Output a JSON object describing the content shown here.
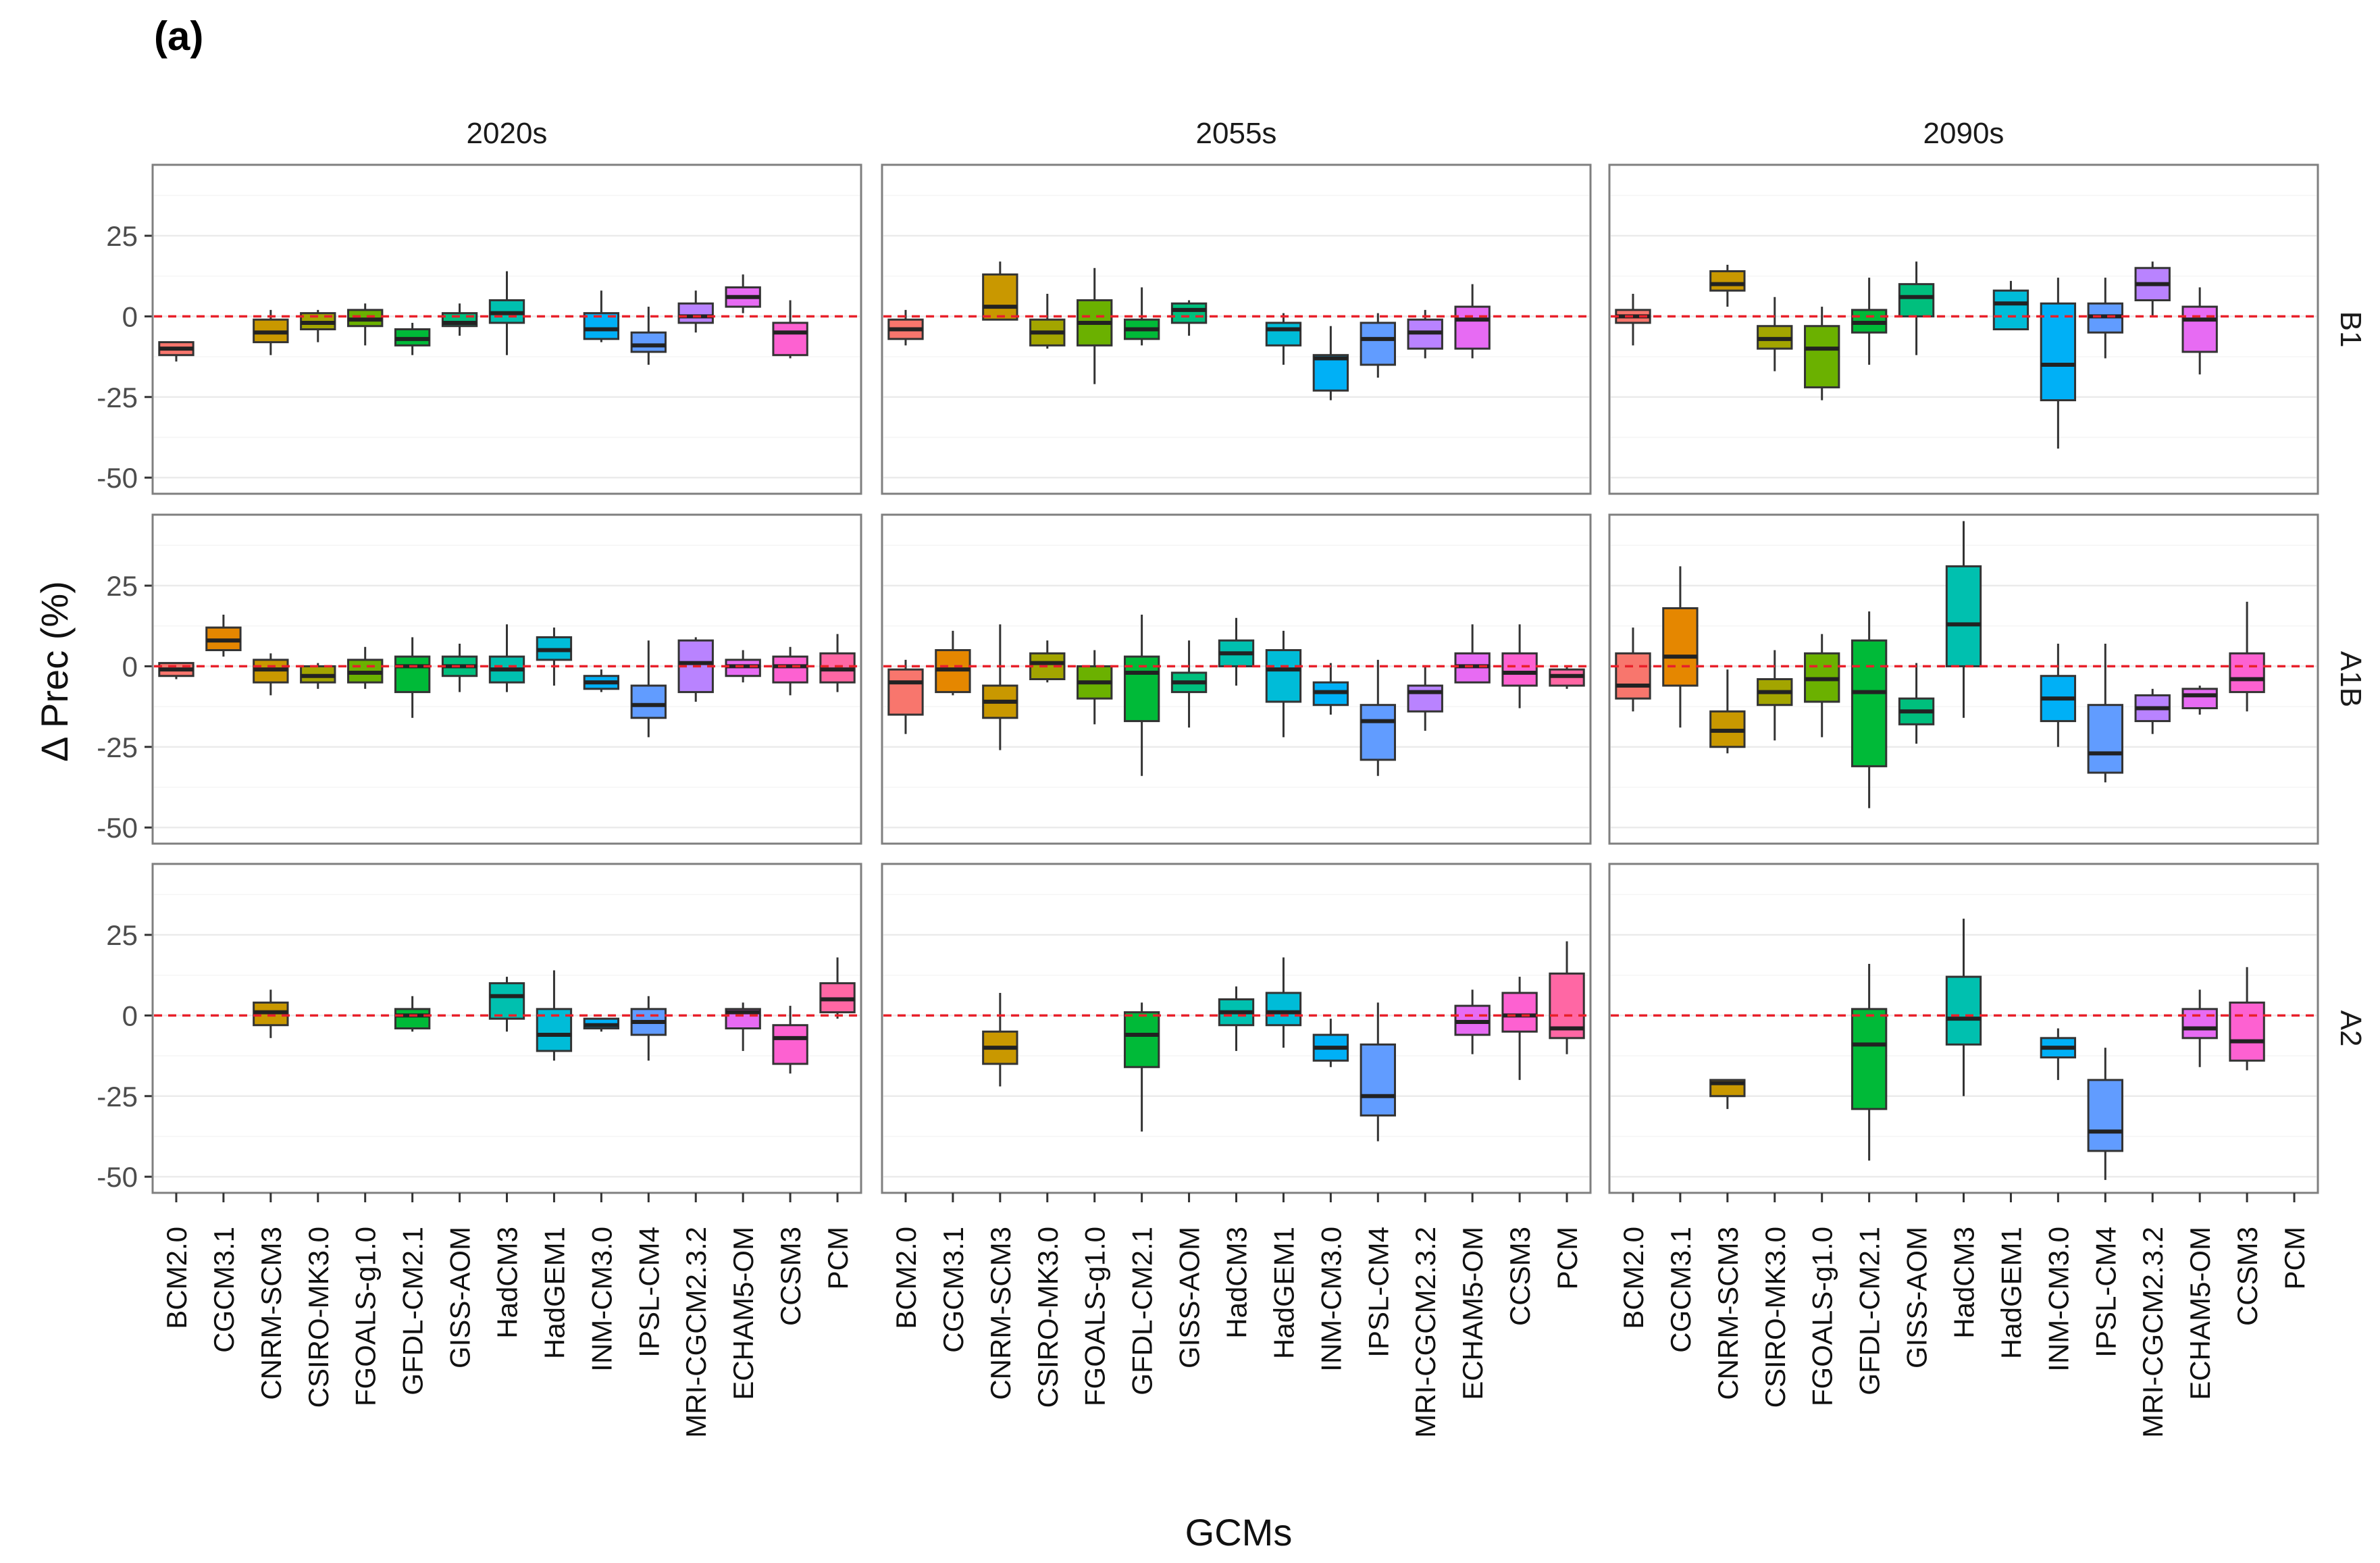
{
  "chart_data": {
    "type": "boxplot",
    "panel_tag": "(a)",
    "xlabel": "GCMs",
    "ylabel": "Δ Prec (%)",
    "ylim": [
      -55,
      47
    ],
    "yticks": [
      -50,
      -25,
      0,
      25
    ],
    "ytick_labels": [
      "-50",
      "-25",
      "0",
      "25"
    ],
    "reference_line": 0,
    "periods": [
      "2020s",
      "2055s",
      "2090s"
    ],
    "scenarios": [
      "B1",
      "A1B",
      "A2"
    ],
    "categories": [
      "BCM2.0",
      "CGCM3.1",
      "CNRM-SCM3",
      "CSIRO-MK3.0",
      "FGOALS-g1.0",
      "GFDL-CM2.1",
      "GISS-AOM",
      "HadCM3",
      "HadGEM1",
      "INM-CM3.0",
      "IPSL-CM4",
      "MRI-CGCM2.3.2",
      "ECHAM5-OM",
      "CCSM3",
      "PCM"
    ],
    "colors": [
      "#f8766d",
      "#e58700",
      "#c99800",
      "#a3a500",
      "#6bb100",
      "#00ba38",
      "#00bf7d",
      "#00c0af",
      "#00bcd8",
      "#00b0f6",
      "#619cff",
      "#b983ff",
      "#e76bf3",
      "#fd61d1",
      "#ff67a4"
    ],
    "stat_order": [
      "lower_whisker",
      "q1",
      "median",
      "q3",
      "upper_whisker"
    ],
    "panels": [
      {
        "scenario": "B1",
        "period": "2020s",
        "boxes": [
          [
            -14,
            -12,
            -10,
            -8,
            -8
          ],
          null,
          [
            -12,
            -8,
            -5,
            -1,
            2
          ],
          [
            -8,
            -4,
            -2,
            1,
            2
          ],
          [
            -9,
            -3,
            -1,
            2,
            4
          ],
          [
            -12,
            -9,
            -7,
            -4,
            -2
          ],
          [
            -6,
            -3,
            -2,
            1,
            4
          ],
          [
            -12,
            -2,
            1,
            5,
            14
          ],
          null,
          [
            -8,
            -7,
            -4,
            1,
            8
          ],
          [
            -15,
            -11,
            -9,
            -5,
            3
          ],
          [
            -5,
            -2,
            0,
            4,
            8
          ],
          [
            1,
            3,
            6,
            9,
            13
          ],
          [
            -13,
            -12,
            -5,
            -2,
            5
          ],
          null
        ]
      },
      {
        "scenario": "B1",
        "period": "2055s",
        "boxes": [
          [
            -9,
            -7,
            -4,
            -1,
            2
          ],
          null,
          [
            -1,
            -1,
            3,
            13,
            17
          ],
          [
            -10,
            -9,
            -5,
            -1,
            7
          ],
          [
            -21,
            -9,
            -2,
            5,
            15
          ],
          [
            -9,
            -7,
            -4,
            -1,
            9
          ],
          [
            -6,
            -2,
            2,
            4,
            5
          ],
          null,
          [
            -15,
            -9,
            -4,
            -2,
            1
          ],
          [
            -26,
            -23,
            -13,
            -12,
            -3
          ],
          [
            -19,
            -15,
            -7,
            -2,
            1
          ],
          [
            -13,
            -10,
            -5,
            -1,
            2
          ],
          [
            -13,
            -10,
            -1,
            3,
            10
          ],
          null,
          null
        ]
      },
      {
        "scenario": "B1",
        "period": "2090s",
        "boxes": [
          [
            -9,
            -2,
            0,
            2,
            7
          ],
          null,
          [
            3,
            8,
            10,
            14,
            16
          ],
          [
            -17,
            -10,
            -7,
            -3,
            6
          ],
          [
            -26,
            -22,
            -10,
            -3,
            3
          ],
          [
            -15,
            -5,
            -2,
            2,
            12
          ],
          [
            -12,
            0,
            6,
            10,
            17
          ],
          null,
          [
            -4,
            -4,
            4,
            8,
            11
          ],
          [
            -41,
            -26,
            -15,
            4,
            12
          ],
          [
            -13,
            -5,
            0,
            4,
            12
          ],
          [
            0,
            5,
            10,
            15,
            17
          ],
          [
            -18,
            -11,
            -1,
            3,
            9
          ],
          null,
          null
        ]
      },
      {
        "scenario": "A1B",
        "period": "2020s",
        "boxes": [
          [
            -4,
            -3,
            -1,
            1,
            1
          ],
          [
            3,
            5,
            8,
            12,
            16
          ],
          [
            -9,
            -5,
            -1,
            2,
            4
          ],
          [
            -7,
            -5,
            -3,
            0,
            1
          ],
          [
            -7,
            -5,
            -2,
            2,
            6
          ],
          [
            -16,
            -8,
            0,
            3,
            9
          ],
          [
            -8,
            -3,
            0,
            3,
            7
          ],
          [
            -8,
            -5,
            -1,
            3,
            13
          ],
          [
            -6,
            2,
            5,
            9,
            12
          ],
          [
            -8,
            -7,
            -5,
            -3,
            -1
          ],
          [
            -22,
            -16,
            -12,
            -6,
            8
          ],
          [
            -11,
            -8,
            1,
            8,
            9
          ],
          [
            -5,
            -3,
            0,
            2,
            5
          ],
          [
            -9,
            -5,
            0,
            3,
            6
          ],
          [
            -8,
            -5,
            -1,
            4,
            10
          ]
        ]
      },
      {
        "scenario": "A1B",
        "period": "2055s",
        "boxes": [
          [
            -21,
            -15,
            -5,
            -1,
            2
          ],
          [
            -9,
            -8,
            -1,
            5,
            11
          ],
          [
            -26,
            -16,
            -11,
            -6,
            13
          ],
          [
            -5,
            -4,
            1,
            4,
            8
          ],
          [
            -18,
            -10,
            -5,
            0,
            5
          ],
          [
            -34,
            -17,
            -2,
            3,
            16
          ],
          [
            -19,
            -8,
            -5,
            -2,
            8
          ],
          [
            -6,
            0,
            4,
            8,
            15
          ],
          [
            -22,
            -11,
            -1,
            5,
            11
          ],
          [
            -15,
            -12,
            -8,
            -5,
            1
          ],
          [
            -34,
            -29,
            -17,
            -12,
            2
          ],
          [
            -20,
            -14,
            -8,
            -6,
            0
          ],
          [
            -5,
            -5,
            0,
            4,
            13
          ],
          [
            -13,
            -6,
            -2,
            4,
            13
          ],
          [
            -7,
            -6,
            -3,
            -1,
            0
          ]
        ]
      },
      {
        "scenario": "A1B",
        "period": "2090s",
        "boxes": [
          [
            -14,
            -10,
            -6,
            4,
            12
          ],
          [
            -19,
            -6,
            3,
            18,
            31
          ],
          [
            -27,
            -25,
            -20,
            -14,
            -1
          ],
          [
            -23,
            -12,
            -8,
            -4,
            5
          ],
          [
            -22,
            -11,
            -4,
            4,
            10
          ],
          [
            -44,
            -31,
            -8,
            8,
            17
          ],
          [
            -24,
            -18,
            -14,
            -10,
            1
          ],
          [
            -16,
            0,
            13,
            31,
            45
          ],
          null,
          [
            -25,
            -17,
            -10,
            -3,
            7
          ],
          [
            -36,
            -33,
            -27,
            -12,
            7
          ],
          [
            -21,
            -17,
            -13,
            -9,
            -7
          ],
          [
            -15,
            -13,
            -9,
            -7,
            -6
          ],
          [
            -14,
            -8,
            -4,
            4,
            20
          ],
          null
        ]
      },
      {
        "scenario": "A2",
        "period": "2020s",
        "boxes": [
          null,
          null,
          [
            -7,
            -3,
            1,
            4,
            8
          ],
          null,
          null,
          [
            -5,
            -4,
            0,
            2,
            6
          ],
          null,
          [
            -5,
            -1,
            6,
            10,
            12
          ],
          [
            -14,
            -11,
            -6,
            2,
            14
          ],
          [
            -5,
            -4,
            -3,
            -1,
            -1
          ],
          [
            -14,
            -6,
            -2,
            2,
            6
          ],
          null,
          [
            -11,
            -4,
            1,
            2,
            4
          ],
          [
            -18,
            -15,
            -7,
            -3,
            3
          ],
          [
            -1,
            1,
            5,
            10,
            18
          ]
        ]
      },
      {
        "scenario": "A2",
        "period": "2055s",
        "boxes": [
          null,
          null,
          [
            -22,
            -15,
            -10,
            -5,
            7
          ],
          null,
          null,
          [
            -36,
            -16,
            -6,
            1,
            4
          ],
          null,
          [
            -11,
            -3,
            1,
            5,
            9
          ],
          [
            -10,
            -3,
            1,
            7,
            18
          ],
          [
            -16,
            -14,
            -10,
            -6,
            -1
          ],
          [
            -39,
            -31,
            -25,
            -9,
            4
          ],
          null,
          [
            -12,
            -6,
            -2,
            3,
            8
          ],
          [
            -20,
            -5,
            0,
            7,
            12
          ],
          [
            -12,
            -7,
            -4,
            13,
            23
          ]
        ]
      },
      {
        "scenario": "A2",
        "period": "2090s",
        "boxes": [
          null,
          null,
          [
            -29,
            -25,
            -21,
            -20,
            -20
          ],
          null,
          null,
          [
            -45,
            -29,
            -9,
            2,
            16
          ],
          null,
          [
            -25,
            -9,
            -1,
            12,
            30
          ],
          null,
          [
            -20,
            -13,
            -10,
            -7,
            -4
          ],
          [
            -51,
            -42,
            -36,
            -20,
            -10
          ],
          null,
          [
            -16,
            -7,
            -4,
            2,
            8
          ],
          [
            -17,
            -14,
            -8,
            4,
            15
          ],
          null
        ]
      }
    ]
  }
}
